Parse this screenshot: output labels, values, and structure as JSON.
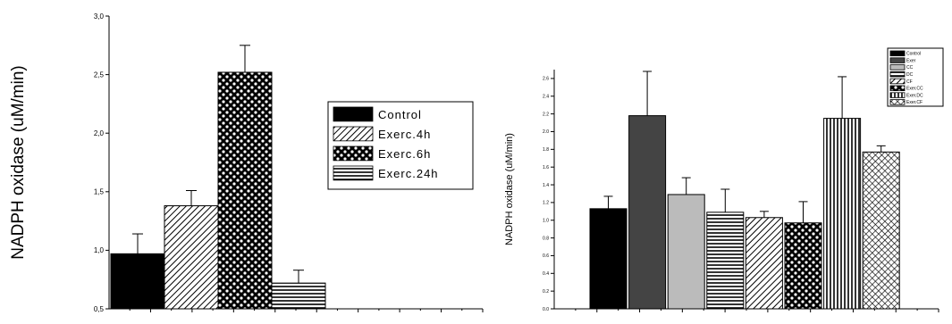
{
  "chart_data": [
    {
      "type": "bar",
      "title": "",
      "xlabel": "",
      "ylabel": "NADPH oxidase (uM/min)",
      "ylim": [
        0.5,
        3.0
      ],
      "yticks": [
        0.5,
        1.0,
        1.5,
        2.0,
        2.5,
        3.0
      ],
      "ytick_labels": [
        "0,5",
        "1,0",
        "1,5",
        "2,0",
        "2,5",
        "3,0"
      ],
      "legend_position": "right",
      "series": [
        {
          "name": "Control",
          "value": 0.97,
          "error": 0.17,
          "pattern": "solid-black"
        },
        {
          "name": "Exerc.4h",
          "value": 1.38,
          "error": 0.13,
          "pattern": "diagonal-hatch"
        },
        {
          "name": "Exerc.6h",
          "value": 2.52,
          "error": 0.23,
          "pattern": "dots"
        },
        {
          "name": "Exerc.24h",
          "value": 0.72,
          "error": 0.11,
          "pattern": "horizontal-lines"
        }
      ]
    },
    {
      "type": "bar",
      "title": "",
      "xlabel": "",
      "ylabel": "NADPH oxidase (uM/min)",
      "ylim": [
        0.0,
        2.7
      ],
      "yticks": [
        0.0,
        0.2,
        0.4,
        0.6,
        0.8,
        1.0,
        1.2,
        1.4,
        1.6,
        1.8,
        2.0,
        2.2,
        2.4,
        2.6
      ],
      "ytick_labels": [
        "0.0",
        "0.2",
        "0.4",
        "0.6",
        "0.8",
        "1.0",
        "1.2",
        "1.4",
        "1.6",
        "1.8",
        "2.0",
        "2.2",
        "2.4",
        "2.6"
      ],
      "legend_position": "top-right",
      "series": [
        {
          "name": "Control",
          "value": 1.13,
          "error": 0.14,
          "pattern": "solid-black"
        },
        {
          "name": "Exer",
          "value": 2.18,
          "error": 0.5,
          "pattern": "solid-darkgray"
        },
        {
          "name": "CC",
          "value": 1.29,
          "error": 0.19,
          "pattern": "solid-lightgray"
        },
        {
          "name": "DC",
          "value": 1.09,
          "error": 0.26,
          "pattern": "horizontal-lines"
        },
        {
          "name": "CF",
          "value": 1.03,
          "error": 0.07,
          "pattern": "diagonal-hatch"
        },
        {
          "name": "Exer.CC",
          "value": 0.97,
          "error": 0.24,
          "pattern": "dots"
        },
        {
          "name": "Exer.DC",
          "value": 2.15,
          "error": 0.47,
          "pattern": "vertical-lines"
        },
        {
          "name": "Exer.CF",
          "value": 1.77,
          "error": 0.07,
          "pattern": "crosshatch"
        }
      ]
    }
  ]
}
